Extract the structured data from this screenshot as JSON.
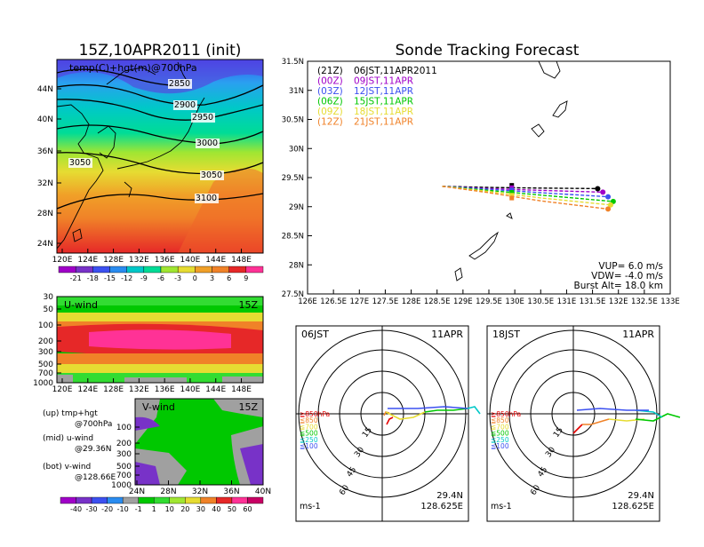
{
  "left": {
    "title": "15Z,10APR2011 (init)",
    "map_label": "temp(C)+hgt(m)@700hPa",
    "lat_ticks": [
      "44N",
      "40N",
      "36N",
      "32N",
      "28N",
      "24N"
    ],
    "lon_ticks": [
      "120E",
      "124E",
      "128E",
      "132E",
      "136E",
      "140E",
      "144E",
      "148E"
    ],
    "contour_labels": [
      "2850",
      "2900",
      "2950",
      "3000",
      "3050",
      "3050",
      "3100"
    ],
    "temp_colorbar": [
      "-21",
      "-18",
      "-15",
      "-12",
      "-9",
      "-6",
      "-3",
      "0",
      "3",
      "6",
      "9"
    ],
    "uwind": {
      "label": "U-wind",
      "time": "15Z",
      "levels": [
        "30",
        "50",
        "100",
        "200",
        "300",
        "500",
        "700",
        "1000"
      ],
      "lon_ticks": [
        "120E",
        "124E",
        "128E",
        "132E",
        "136E",
        "140E",
        "144E",
        "148E"
      ]
    },
    "vwind": {
      "label": "V-wind",
      "time": "15Z",
      "levels": [
        "100",
        "200",
        "300",
        "500",
        "700",
        "1000"
      ],
      "lat_ticks": [
        "24N",
        "28N",
        "32N",
        "36N",
        "40N"
      ]
    },
    "wind_colorbar": [
      "-40",
      "-30",
      "-20",
      "-10",
      "-1",
      "1",
      "10",
      "20",
      "30",
      "40",
      "50",
      "60"
    ],
    "notes": [
      {
        "line1": "(up)  tmp+hgt",
        "line2": "@700hPa"
      },
      {
        "line1": "(mid)  u-wind",
        "line2": "@29.36N"
      },
      {
        "line1": "(bot)  v-wind",
        "line2": "@128.66E"
      }
    ]
  },
  "tracking": {
    "title": "Sonde Tracking Forecast",
    "lat_ticks": [
      "31.5N",
      "31N",
      "30.5N",
      "30N",
      "29.5N",
      "29N",
      "28.5N",
      "28N",
      "27.5N"
    ],
    "lon_ticks": [
      "126E",
      "126.5E",
      "127E",
      "127.5E",
      "128E",
      "128.5E",
      "129E",
      "129.5E",
      "130E",
      "130.5E",
      "131E",
      "131.5E",
      "132E",
      "132.5E",
      "133E"
    ],
    "legend": [
      {
        "code": "(21Z)",
        "time": "06JST,11APR2011",
        "color": "#000000"
      },
      {
        "code": "(00Z)",
        "time": "09JST,11APR",
        "color": "#a000c8"
      },
      {
        "code": "(03Z)",
        "time": "12JST,11APR",
        "color": "#3c50f0"
      },
      {
        "code": "(06Z)",
        "time": "15JST,11APR",
        "color": "#00c800"
      },
      {
        "code": "(09Z)",
        "time": "18JST,11APR",
        "color": "#e6dc32"
      },
      {
        "code": "(12Z)",
        "time": "21JST,11APR",
        "color": "#f08228"
      }
    ],
    "params": [
      "VUP= 6.0  m/s",
      "VDW= -4.0  m/s",
      "Burst Alt= 18.0  km"
    ]
  },
  "polar_left": {
    "time": "06JST",
    "date": "11APR",
    "lat": "29.4N",
    "lon": "128.625E",
    "unit": "ms-1"
  },
  "polar_right": {
    "time": "18JST",
    "date": "11APR",
    "lat": "29.4N",
    "lon": "128.625E",
    "unit": "ms-1"
  },
  "polar_rings": [
    "15",
    "30",
    "45",
    "60"
  ],
  "polar_legend": [
    {
      "label": "≧850hPa",
      "color": "#e60000"
    },
    {
      "label": "≦850",
      "color": "#f08228"
    },
    {
      "label": "≦700",
      "color": "#e6dc32"
    },
    {
      "label": "≦500",
      "color": "#00c800"
    },
    {
      "label": "≦250",
      "color": "#00c8c8"
    },
    {
      "label": "≦100",
      "color": "#3c50f0"
    }
  ],
  "chart_data": {
    "type": "line",
    "title": "Sonde Tracking Forecast",
    "xlabel": "",
    "ylabel": "",
    "xlim": [
      126,
      133
    ],
    "ylim": [
      27.5,
      31.5
    ],
    "legend_position": "top-left",
    "series": [
      {
        "name": "06JST,11APR2011",
        "color": "#000000",
        "points": [
          [
            128.6,
            29.35
          ],
          [
            129.5,
            29.33
          ],
          [
            130.5,
            29.32
          ],
          [
            131.6,
            29.31
          ]
        ]
      },
      {
        "name": "09JST,11APR",
        "color": "#a000c8",
        "points": [
          [
            128.6,
            29.35
          ],
          [
            129.5,
            29.31
          ],
          [
            130.5,
            29.28
          ],
          [
            131.7,
            29.25
          ]
        ]
      },
      {
        "name": "12JST,11APR",
        "color": "#3c50f0",
        "points": [
          [
            128.6,
            29.35
          ],
          [
            129.5,
            29.3
          ],
          [
            130.5,
            29.24
          ],
          [
            131.8,
            29.17
          ]
        ]
      },
      {
        "name": "15JST,11APR",
        "color": "#00c800",
        "points": [
          [
            128.6,
            29.35
          ],
          [
            129.5,
            29.28
          ],
          [
            130.5,
            29.2
          ],
          [
            131.9,
            29.09
          ]
        ]
      },
      {
        "name": "18JST,11APR",
        "color": "#e6dc32",
        "points": [
          [
            128.6,
            29.35
          ],
          [
            129.5,
            29.26
          ],
          [
            130.5,
            29.15
          ],
          [
            131.85,
            29.03
          ]
        ]
      },
      {
        "name": "21JST,11APR",
        "color": "#f08228",
        "points": [
          [
            128.6,
            29.35
          ],
          [
            129.5,
            29.24
          ],
          [
            130.5,
            29.1
          ],
          [
            131.8,
            28.96
          ]
        ]
      }
    ]
  }
}
